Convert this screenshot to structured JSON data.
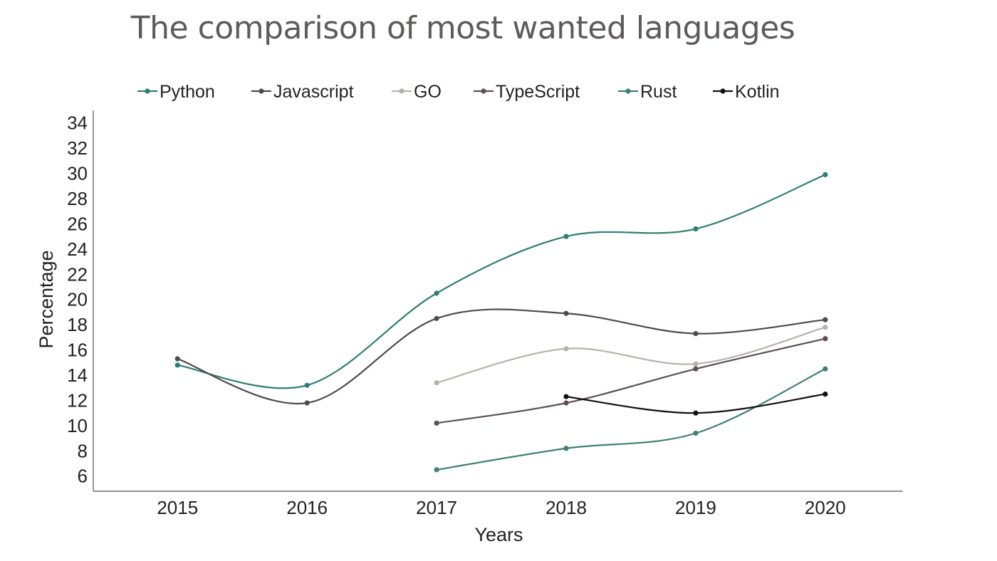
{
  "chart_data": {
    "type": "line",
    "title": "The comparison of most wanted languages",
    "xlabel": "Years",
    "ylabel": "Percentage",
    "x": [
      2015,
      2016,
      2017,
      2018,
      2019,
      2020
    ],
    "xlim": [
      2014.35,
      2020.6
    ],
    "ylim": [
      4.8,
      35
    ],
    "yticks": [
      6,
      8,
      10,
      12,
      14,
      16,
      18,
      20,
      22,
      24,
      26,
      28,
      30,
      32,
      34
    ],
    "grid": false,
    "legend_position": "top",
    "line_style": "smooth",
    "series": [
      {
        "name": "Python",
        "color": "#2e7f72",
        "values": [
          14.8,
          13.2,
          20.5,
          25.0,
          25.6,
          29.9
        ]
      },
      {
        "name": "Javascript",
        "color": "#4e4a4f",
        "values": [
          15.3,
          11.8,
          18.5,
          18.9,
          17.3,
          18.4
        ]
      },
      {
        "name": "GO",
        "color": "#b6b3ad",
        "values": [
          null,
          null,
          13.4,
          16.1,
          14.9,
          17.8
        ]
      },
      {
        "name": "TypeScript",
        "color": "#5e4e55",
        "values": [
          null,
          null,
          10.2,
          11.8,
          14.5,
          16.9
        ]
      },
      {
        "name": "Rust",
        "color": "#3f8075",
        "values": [
          null,
          null,
          6.5,
          8.2,
          9.4,
          14.5
        ]
      },
      {
        "name": "Kotlin",
        "color": "#111111",
        "values": [
          null,
          null,
          null,
          12.3,
          11.0,
          12.5
        ]
      }
    ]
  }
}
